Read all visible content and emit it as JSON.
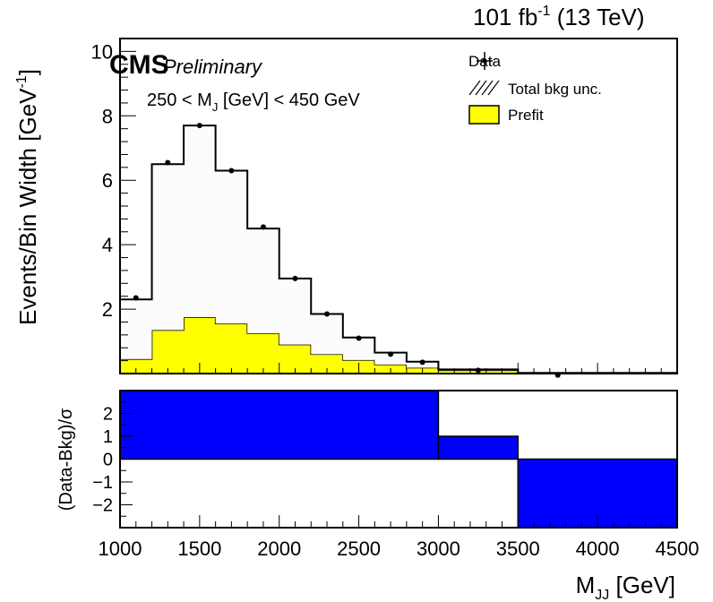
{
  "header": {
    "lumi": "101 fb",
    "lumi_exp": "-1",
    "energy": " (13 TeV)",
    "cms": "CMS",
    "preliminary": "Preliminary",
    "selection": "250 < M",
    "selection_sub": "J",
    "selection_tail": " [GeV] < 450 GeV"
  },
  "legend": {
    "data": "Data",
    "unc": "Total bkg unc.",
    "prefit": "Prefit"
  },
  "colors": {
    "prefit_fill": "#ffff00",
    "bkg_fill": "#fcfcfc",
    "pull_fill": "#0000ff"
  },
  "chart_data": [
    {
      "type": "bar",
      "panel": "main",
      "xlabel": "",
      "ylabel": "Events/Bin Width [GeV",
      "ylabel_exp": "-1",
      "ylabel_close": "]",
      "xlim": [
        1000,
        4500
      ],
      "ylim": [
        0,
        10.4
      ],
      "y_ticks": [
        2,
        4,
        6,
        8,
        10
      ],
      "bin_edges": [
        1000,
        1200,
        1400,
        1600,
        1800,
        2000,
        2200,
        2400,
        2600,
        2800,
        3000,
        3500,
        4500
      ],
      "series": [
        {
          "name": "Prefit",
          "style": "filled",
          "values": [
            0.45,
            1.35,
            1.75,
            1.55,
            1.25,
            0.9,
            0.6,
            0.42,
            0.28,
            0.18,
            0.1,
            0.02
          ]
        },
        {
          "name": "Total bkg",
          "style": "outline",
          "values": [
            2.3,
            6.5,
            7.7,
            6.3,
            4.5,
            2.95,
            1.85,
            1.12,
            0.65,
            0.37,
            0.13,
            0.02
          ]
        },
        {
          "name": "Data",
          "style": "points",
          "x": [
            1100,
            1300,
            1500,
            1700,
            1900,
            2100,
            2300,
            2500,
            2700,
            2900,
            3250,
            3750
          ],
          "values": [
            2.35,
            6.55,
            7.7,
            6.3,
            4.55,
            2.95,
            1.85,
            1.1,
            0.6,
            0.35,
            0.1,
            -0.05
          ]
        }
      ]
    },
    {
      "type": "bar",
      "panel": "ratio",
      "xlabel": "M",
      "xlabel_sub": "JJ",
      "xlabel_tail": " [GeV]",
      "ylabel": "(Data-Bkg)/σ",
      "xlim": [
        1000,
        4500
      ],
      "ylim": [
        -3,
        3
      ],
      "x_ticks": [
        1000,
        1500,
        2000,
        2500,
        3000,
        3500,
        4000,
        4500
      ],
      "y_ticks": [
        -2,
        -1,
        0,
        1,
        2
      ],
      "bin_edges": [
        1000,
        3000,
        3500,
        4500
      ],
      "values": [
        3.0,
        1.0,
        -3.0
      ]
    }
  ]
}
